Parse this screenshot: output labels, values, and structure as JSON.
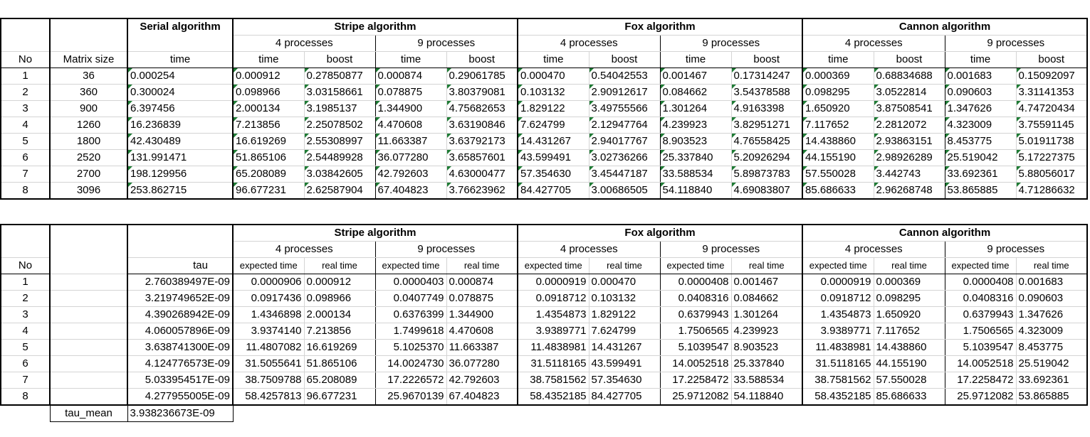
{
  "top": {
    "header": {
      "no": "No",
      "matrix_size": "Matrix size",
      "serial": "Serial algorithm",
      "stripe": "Stripe algorithm",
      "fox": "Fox algorithm",
      "cannon": "Cannon algorithm",
      "p4": "4 processes",
      "p9": "9 processes",
      "time": "time",
      "boost": "boost"
    },
    "rows": [
      [
        "1",
        "36",
        "0.000254",
        "0.000912",
        "0.27850877",
        "0.000874",
        "0.29061785",
        "0.000470",
        "0.54042553",
        "0.001467",
        "0.17314247",
        "0.000369",
        "0.68834688",
        "0.001683",
        "0.15092097"
      ],
      [
        "2",
        "360",
        "0.300024",
        "0.098966",
        "3.03158661",
        "0.078875",
        "3.80379081",
        "0.103132",
        "2.90912617",
        "0.084662",
        "3.54378588",
        "0.098295",
        "3.0522814",
        "0.090603",
        "3.31141353"
      ],
      [
        "3",
        "900",
        "6.397456",
        "2.000134",
        "3.1985137",
        "1.344900",
        "4.75682653",
        "1.829122",
        "3.49755566",
        "1.301264",
        "4.9163398",
        "1.650920",
        "3.87508541",
        "1.347626",
        "4.74720434"
      ],
      [
        "4",
        "1260",
        "16.236839",
        "7.213856",
        "2.25078502",
        "4.470608",
        "3.63190846",
        "7.624799",
        "2.12947764",
        "4.239923",
        "3.82951271",
        "7.117652",
        "2.2812072",
        "4.323009",
        "3.75591145"
      ],
      [
        "5",
        "1800",
        "42.430489",
        "16.619269",
        "2.55308997",
        "11.663387",
        "3.63792173",
        "14.431267",
        "2.94017767",
        "8.903523",
        "4.76558425",
        "14.438860",
        "2.93863151",
        "8.453775",
        "5.01911738"
      ],
      [
        "6",
        "2520",
        "131.991471",
        "51.865106",
        "2.54489928",
        "36.077280",
        "3.65857601",
        "43.599491",
        "3.02736266",
        "25.337840",
        "5.20926294",
        "44.155190",
        "2.98926289",
        "25.519042",
        "5.17227375"
      ],
      [
        "7",
        "2700",
        "198.129956",
        "65.208089",
        "3.03842605",
        "42.792603",
        "4.63000477",
        "57.354630",
        "3.45447187",
        "33.588534",
        "5.89873783",
        "57.550028",
        "3.442743",
        "33.692361",
        "5.88056017"
      ],
      [
        "8",
        "3096",
        "253.862715",
        "96.677231",
        "2.62587904",
        "67.404823",
        "3.76623962",
        "84.427705",
        "3.00686505",
        "54.118840",
        "4.69083807",
        "85.686633",
        "2.96268748",
        "53.865885",
        "4.71286632"
      ]
    ]
  },
  "bottom": {
    "header": {
      "no": "No",
      "tau": "tau",
      "stripe": "Stripe algorithm",
      "fox": "Fox algorithm",
      "cannon": "Cannon algorithm",
      "p4": "4 processes",
      "p9": "9 processes",
      "expected": "expected time",
      "real": "real time"
    },
    "rows": [
      [
        "1",
        "2.760389497E-09",
        "0.0000906",
        "0.000912",
        "0.0000403",
        "0.000874",
        "0.0000919",
        "0.000470",
        "0.0000408",
        "0.001467",
        "0.0000919",
        "0.000369",
        "0.0000408",
        "0.001683"
      ],
      [
        "2",
        "3.219749652E-09",
        "0.0917436",
        "0.098966",
        "0.0407749",
        "0.078875",
        "0.0918712",
        "0.103132",
        "0.0408316",
        "0.084662",
        "0.0918712",
        "0.098295",
        "0.0408316",
        "0.090603"
      ],
      [
        "3",
        "4.390268942E-09",
        "1.4346898",
        "2.000134",
        "0.6376399",
        "1.344900",
        "1.4354873",
        "1.829122",
        "0.6379943",
        "1.301264",
        "1.4354873",
        "1.650920",
        "0.6379943",
        "1.347626"
      ],
      [
        "4",
        "4.060057896E-09",
        "3.9374140",
        "7.213856",
        "1.7499618",
        "4.470608",
        "3.9389771",
        "7.624799",
        "1.7506565",
        "4.239923",
        "3.9389771",
        "7.117652",
        "1.7506565",
        "4.323009"
      ],
      [
        "5",
        "3.638741300E-09",
        "11.4807082",
        "16.619269",
        "5.1025370",
        "11.663387",
        "11.4838981",
        "14.431267",
        "5.1039547",
        "8.903523",
        "11.4838981",
        "14.438860",
        "5.1039547",
        "8.453775"
      ],
      [
        "6",
        "4.124776573E-09",
        "31.5055641",
        "51.865106",
        "14.0024730",
        "36.077280",
        "31.5118165",
        "43.599491",
        "14.0052518",
        "25.337840",
        "31.5118165",
        "44.155190",
        "14.0052518",
        "25.519042"
      ],
      [
        "7",
        "5.033954517E-09",
        "38.7509788",
        "65.208089",
        "17.2226572",
        "42.792603",
        "38.7581562",
        "57.354630",
        "17.2258472",
        "33.588534",
        "38.7581562",
        "57.550028",
        "17.2258472",
        "33.692361"
      ],
      [
        "8",
        "4.277955005E-09",
        "58.4257813",
        "96.677231",
        "25.9670139",
        "67.404823",
        "58.4352185",
        "84.427705",
        "25.9712082",
        "54.118840",
        "58.4352185",
        "85.686633",
        "25.9712082",
        "53.865885"
      ]
    ],
    "tau_mean_label": "tau_mean",
    "tau_mean_value": "3.938236673E-09"
  }
}
